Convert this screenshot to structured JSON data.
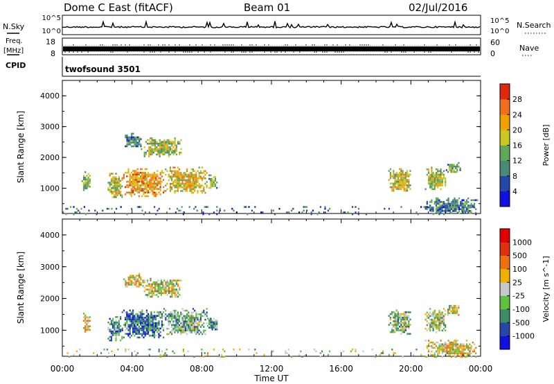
{
  "header": {
    "site": "Dome C East (fitACF)",
    "beam": "Beam 01",
    "date": "02/Jul/2016"
  },
  "side_labels": {
    "nsky": "N.Sky",
    "freq_line1": "Freq.",
    "freq_line2": "[MHz]",
    "cpid": "CPID",
    "nsearch": "N.Search",
    "nave": "Nave"
  },
  "top_ticks": {
    "noise_top": "10^5",
    "noise_bottom": "10^0",
    "noise_right_top": "10^5",
    "noise_right_bottom": "10^0",
    "freq_top": "18",
    "freq_bottom": "8",
    "nave_top": "60",
    "nave_bottom": "0"
  },
  "cpid_text": "twofsound 3501",
  "chart_data": [
    {
      "type": "heatmap",
      "name": "power",
      "ylabel": "Slant Range [km]",
      "xlabel": "Time UT",
      "colorbar_label": "Power [dB]",
      "x_range_hours": [
        0,
        24
      ],
      "ylim_km": [
        180,
        4500
      ],
      "yticks": [
        "1000",
        "2000",
        "3000",
        "4000"
      ],
      "colorbar_ticks": [
        "4",
        "8",
        "12",
        "16",
        "20",
        "24",
        "28"
      ],
      "colorbar_colors": [
        "#1010e0",
        "#2747a8",
        "#4a8a78",
        "#5fa85a",
        "#c8c820",
        "#f0a000",
        "#f07020",
        "#e02810"
      ],
      "colorbar_range": [
        0,
        32
      ],
      "regions": [
        {
          "t0": 1.1,
          "t1": 1.6,
          "r0": 950,
          "r1": 1550,
          "level": 0.45
        },
        {
          "t0": 2.6,
          "t1": 3.4,
          "r0": 700,
          "r1": 1500,
          "level": 0.55
        },
        {
          "t0": 3.4,
          "t1": 5.8,
          "r0": 750,
          "r1": 1650,
          "level": 0.7
        },
        {
          "t0": 5.8,
          "t1": 8.3,
          "r0": 850,
          "r1": 1700,
          "level": 0.6
        },
        {
          "t0": 8.3,
          "t1": 8.9,
          "r0": 1000,
          "r1": 1450,
          "level": 0.4
        },
        {
          "t0": 3.5,
          "t1": 4.5,
          "r0": 2350,
          "r1": 2800,
          "level": 0.3
        },
        {
          "t0": 4.5,
          "t1": 6.8,
          "r0": 2050,
          "r1": 2650,
          "level": 0.5
        },
        {
          "t0": 18.7,
          "t1": 20.0,
          "r0": 900,
          "r1": 1650,
          "level": 0.55
        },
        {
          "t0": 20.8,
          "t1": 22.0,
          "r0": 950,
          "r1": 1700,
          "level": 0.5
        },
        {
          "t0": 22.0,
          "t1": 22.8,
          "r0": 1500,
          "r1": 1850,
          "level": 0.4
        },
        {
          "t0": 20.8,
          "t1": 23.8,
          "r0": 180,
          "r1": 700,
          "level": 0.3
        },
        {
          "t0": 0.0,
          "t1": 24.0,
          "r0": 180,
          "r1": 420,
          "level": 0.25
        }
      ]
    },
    {
      "type": "heatmap",
      "name": "velocity",
      "ylabel": "Slant Range [km]",
      "xlabel": "Time UT",
      "colorbar_label": "Velocity [m s^-1]",
      "x_range_hours": [
        0,
        24
      ],
      "ylim_km": [
        180,
        4500
      ],
      "yticks": [
        "1000",
        "2000",
        "3000",
        "4000"
      ],
      "colorbar_ticks": [
        "1000",
        "500",
        "100",
        "25",
        "-25",
        "-100",
        "-500",
        "-1000"
      ],
      "colorbar_colors": [
        "#1010e0",
        "#2747a8",
        "#3c8c68",
        "#60c040",
        "#c8c8c8",
        "#f0b000",
        "#f07010",
        "#e03010",
        "#e00000"
      ],
      "colorbar_range": [
        -1250,
        1250
      ],
      "regions": [
        {
          "t0": 1.1,
          "t1": 1.6,
          "r0": 950,
          "r1": 1550,
          "level": 0.55
        },
        {
          "t0": 2.6,
          "t1": 3.4,
          "r0": 700,
          "r1": 1500,
          "level": 0.3
        },
        {
          "t0": 3.4,
          "t1": 5.8,
          "r0": 750,
          "r1": 1650,
          "level": 0.25
        },
        {
          "t0": 5.8,
          "t1": 8.3,
          "r0": 850,
          "r1": 1700,
          "level": 0.35
        },
        {
          "t0": 8.3,
          "t1": 8.9,
          "r0": 1000,
          "r1": 1450,
          "level": 0.3
        },
        {
          "t0": 3.5,
          "t1": 4.5,
          "r0": 2350,
          "r1": 2800,
          "level": 0.55
        },
        {
          "t0": 4.5,
          "t1": 6.8,
          "r0": 2050,
          "r1": 2650,
          "level": 0.5
        },
        {
          "t0": 18.7,
          "t1": 20.0,
          "r0": 900,
          "r1": 1650,
          "level": 0.4
        },
        {
          "t0": 20.8,
          "t1": 22.0,
          "r0": 950,
          "r1": 1700,
          "level": 0.45
        },
        {
          "t0": 22.0,
          "t1": 22.8,
          "r0": 1500,
          "r1": 1850,
          "level": 0.5
        },
        {
          "t0": 20.8,
          "t1": 23.8,
          "r0": 180,
          "r1": 700,
          "level": 0.55
        },
        {
          "t0": 0.0,
          "t1": 24.0,
          "r0": 180,
          "r1": 420,
          "level": 0.45
        }
      ]
    }
  ],
  "time_axis": {
    "ticks": [
      "00:00",
      "04:00",
      "08:00",
      "12:00",
      "16:00",
      "20:00",
      "00:00"
    ],
    "label": "Time UT"
  }
}
